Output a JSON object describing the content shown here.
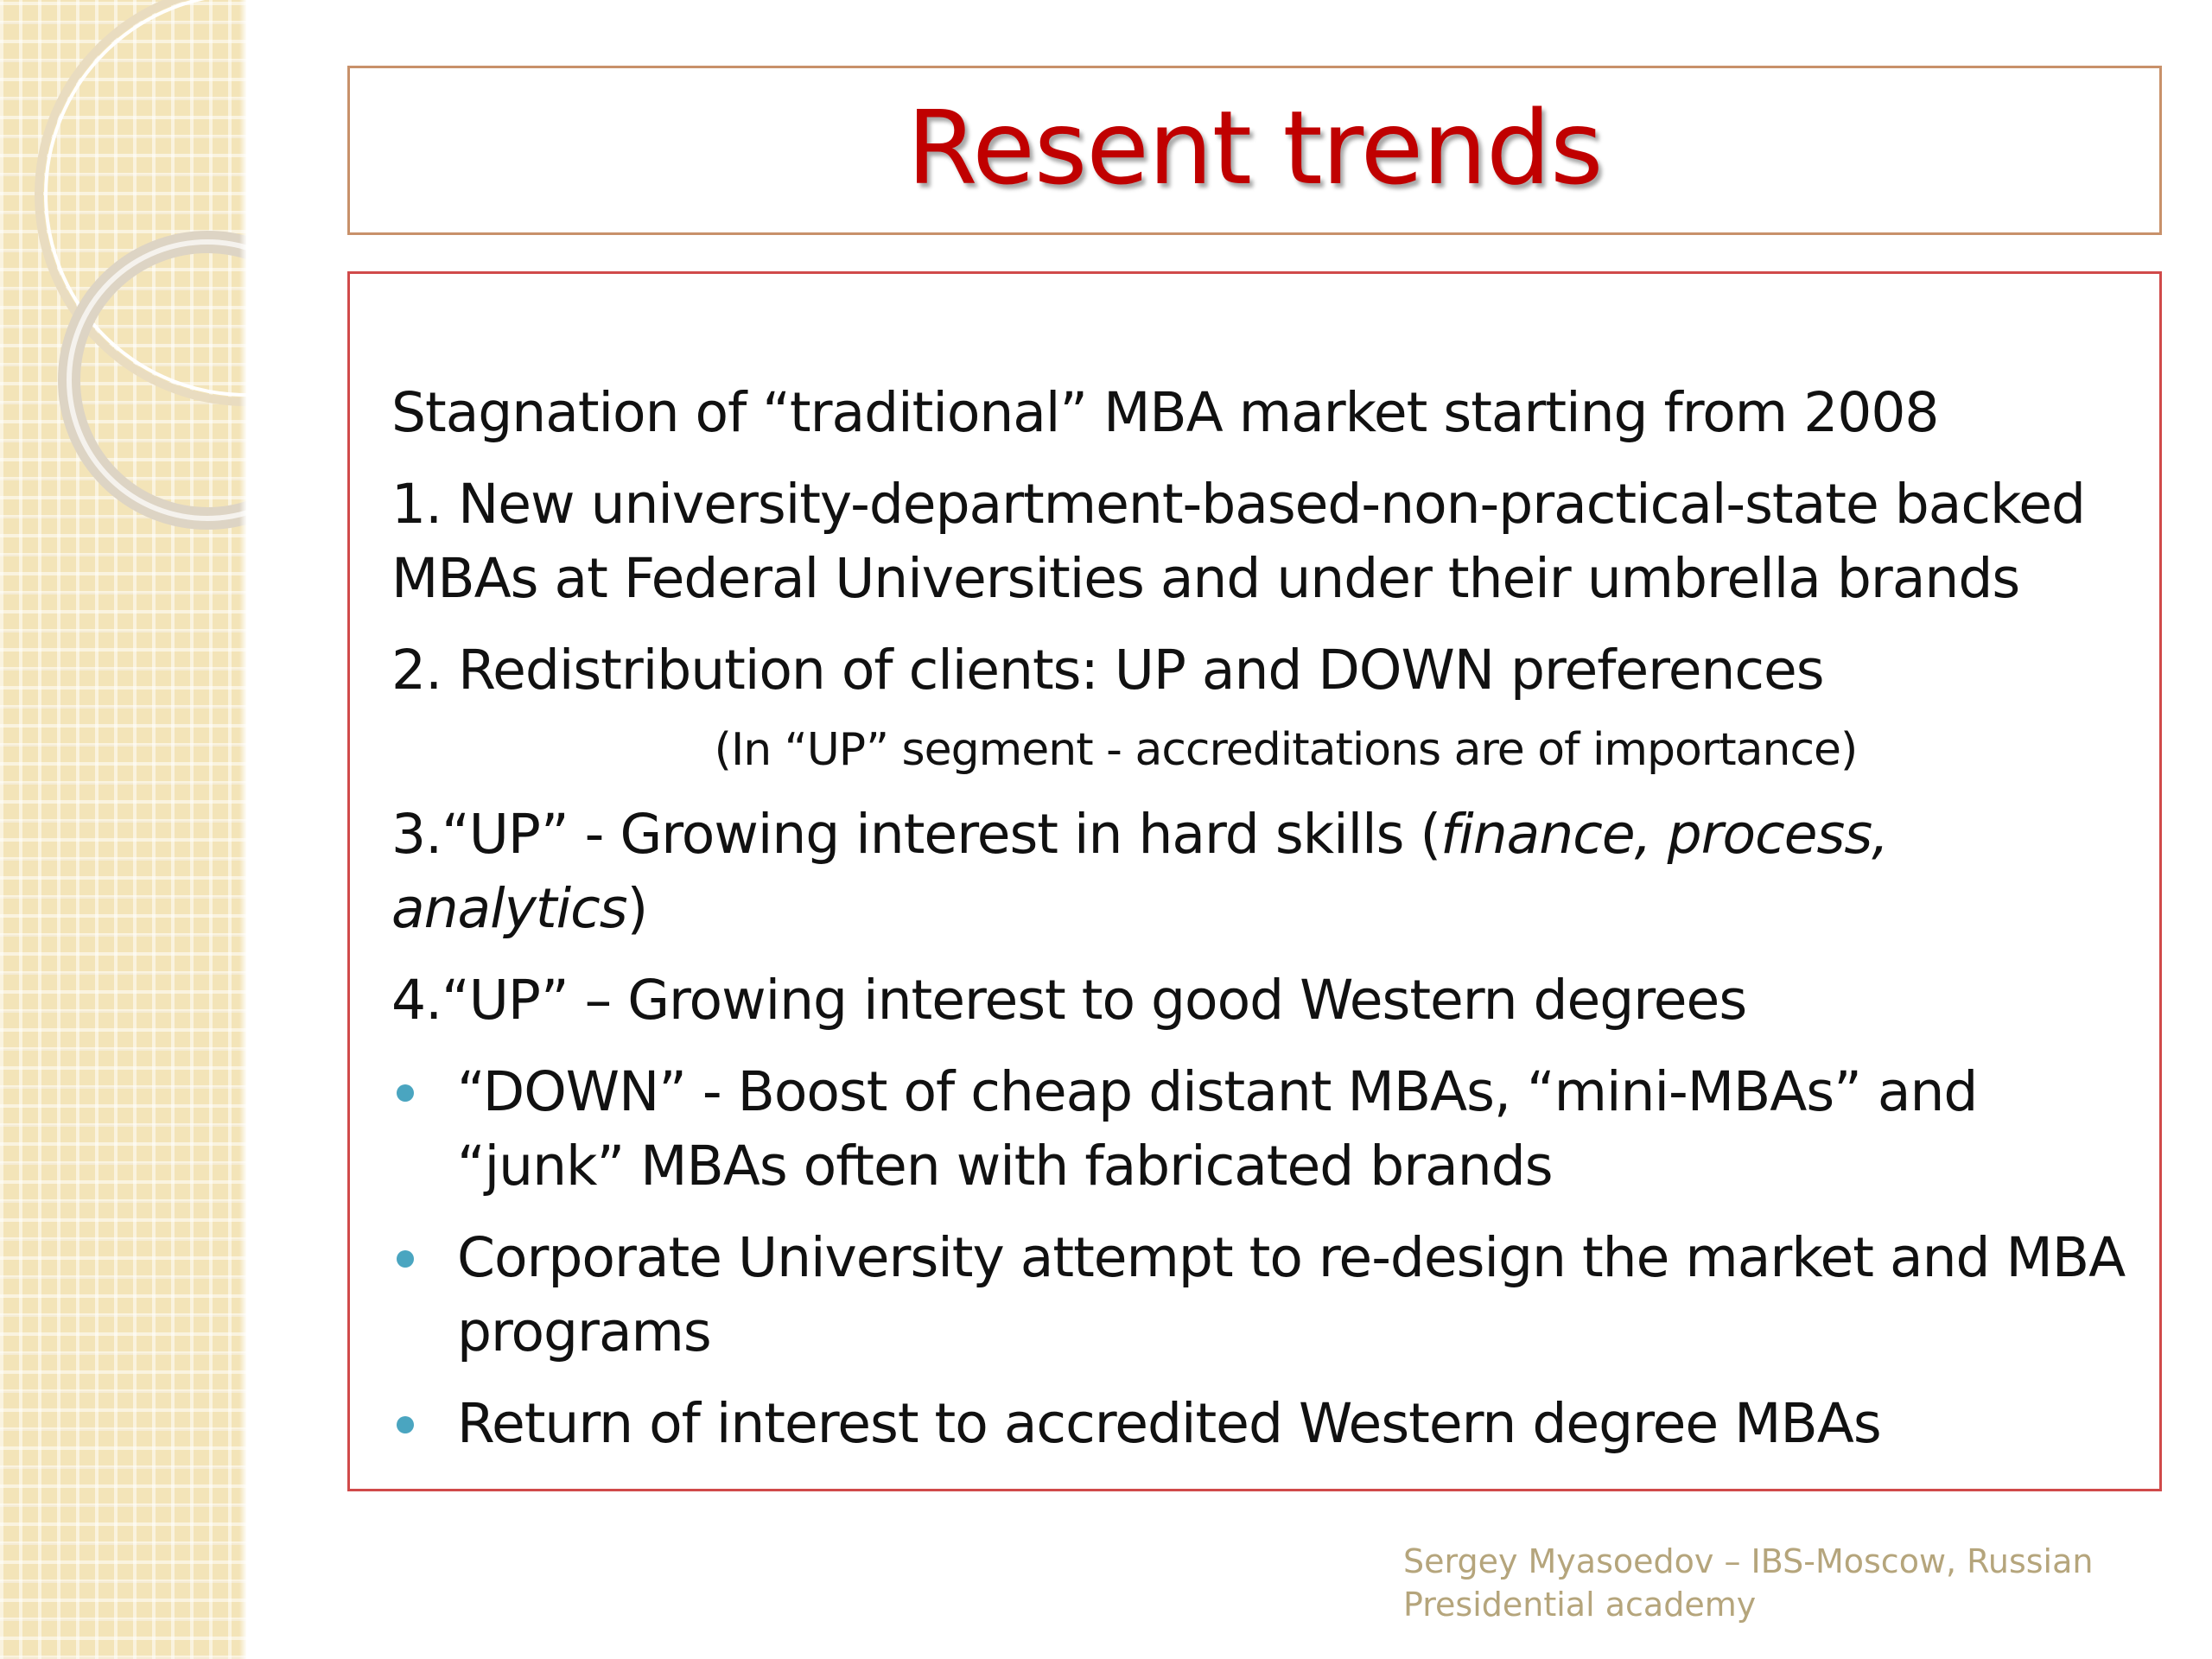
{
  "slide": {
    "title": "Resent trends",
    "lines": [
      {
        "text": "Stagnation of “traditional” MBA market starting from 2008"
      },
      {
        "text": "1. New university-department-based-non-practical-state backed MBAs at Federal Universities and under their umbrella brands"
      },
      {
        "text": "2. Redistribution of clients: UP and DOWN preferences"
      },
      {
        "text": "(In “UP” segment - accreditations are of importance)"
      },
      {
        "text_before": "3.“UP” - Growing interest in hard skills (",
        "text_italic": "finance, process, analytics",
        "text_after": ")"
      },
      {
        "text": "4.“UP” – Growing interest to good Western degrees"
      }
    ],
    "bullets": [
      {
        "text": "“DOWN” - Boost of cheap distant MBAs, “mini-MBAs” and “junk” MBAs often with fabricated brands"
      },
      {
        "text": "Corporate University attempt to re-design the market and MBA programs"
      },
      {
        "text": "Return of interest to accredited Western degree MBAs"
      }
    ],
    "footer": {
      "line1": "Sergey Myasoedov – IBS-Moscow, Russian",
      "line2": "Presidential academy"
    },
    "colors": {
      "title": "#c00000",
      "bullet": "#4aa5c0",
      "footer": "#b5a57c",
      "title_border": "#c8916a",
      "content_border": "#d04a4a",
      "side_strip": "#f3e4b8"
    }
  }
}
